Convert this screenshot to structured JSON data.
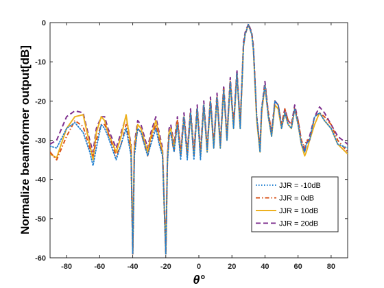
{
  "chart_data": {
    "type": "line",
    "xlabel": "θ°",
    "ylabel": "Normalize beamformer output[dB]",
    "xlim": [
      -90,
      90
    ],
    "ylim": [
      -60,
      0
    ],
    "xticks": [
      -80,
      -60,
      -40,
      -20,
      0,
      20,
      40,
      60,
      80
    ],
    "yticks": [
      0,
      -10,
      -20,
      -30,
      -40,
      -50,
      -60
    ],
    "grid": false,
    "legend_position": "bottom-right",
    "series": [
      {
        "name": "JJR = -10dB",
        "color": "#1f7fd0",
        "style": "dotted",
        "x": [
          -90,
          -86,
          -80,
          -75,
          -70,
          -66,
          -64,
          -62,
          -59,
          -57,
          -55,
          -50,
          -47,
          -44,
          -41,
          -40,
          -39,
          -37,
          -35,
          -33,
          -31,
          -29,
          -26,
          -24,
          -22,
          -20,
          -19,
          -18,
          -17,
          -15,
          -13,
          -11,
          -9,
          -7,
          -5,
          -3,
          -1,
          1,
          3,
          5,
          7,
          9,
          11,
          13,
          15,
          17,
          19,
          21,
          23,
          25,
          27,
          28,
          30,
          32,
          33,
          35,
          37,
          38,
          40,
          42,
          44,
          46,
          48,
          50,
          52,
          54,
          56,
          58,
          60,
          62,
          64,
          65,
          67,
          70,
          73,
          76,
          80,
          84,
          90
        ],
        "y": [
          -31.5,
          -32,
          -27,
          -25.5,
          -28,
          -33,
          -36.5,
          -32,
          -26,
          -27,
          -29,
          -35,
          -31,
          -27,
          -34,
          -59,
          -34,
          -27,
          -28,
          -31,
          -34,
          -31,
          -27,
          -31,
          -34,
          -59,
          -36,
          -29,
          -28,
          -33,
          -26,
          -35,
          -24,
          -35,
          -23,
          -35,
          -22,
          -35,
          -21,
          -33,
          -20,
          -32,
          -19,
          -32,
          -17,
          -30,
          -15,
          -27,
          -13,
          -27,
          -6,
          -3,
          -0.5,
          -3,
          -7,
          -24,
          -33,
          -22,
          -16,
          -24,
          -29,
          -20,
          -21,
          -27,
          -23,
          -26,
          -27,
          -22,
          -26,
          -31,
          -33,
          -31,
          -30,
          -24,
          -23,
          -25,
          -27,
          -31,
          -32
        ]
      },
      {
        "name": "JJR = 0dB",
        "color": "#d95319",
        "style": "dashdot",
        "x": [
          -90,
          -86,
          -80,
          -75,
          -70,
          -66,
          -64,
          -62,
          -59,
          -57,
          -55,
          -50,
          -47,
          -44,
          -41,
          -40,
          -39,
          -37,
          -35,
          -33,
          -31,
          -29,
          -26,
          -24,
          -22,
          -20,
          -19,
          -18,
          -17,
          -15,
          -13,
          -11,
          -9,
          -7,
          -5,
          -3,
          -1,
          1,
          3,
          5,
          7,
          9,
          11,
          13,
          15,
          17,
          19,
          21,
          23,
          25,
          27,
          28,
          30,
          32,
          33,
          35,
          37,
          38,
          40,
          42,
          44,
          46,
          48,
          50,
          52,
          54,
          56,
          58,
          60,
          62,
          64,
          65,
          67,
          70,
          73,
          76,
          80,
          84,
          90
        ],
        "y": [
          -33,
          -35,
          -29,
          -25,
          -26.5,
          -32,
          -34,
          -30,
          -26,
          -26,
          -28,
          -34,
          -31,
          -26,
          -33,
          -59,
          -33,
          -27,
          -28,
          -31,
          -34,
          -30,
          -26,
          -30,
          -34,
          -59,
          -35,
          -29,
          -28,
          -33,
          -25,
          -34,
          -24,
          -34,
          -23,
          -34,
          -22,
          -34,
          -21,
          -32,
          -20,
          -31,
          -19,
          -31,
          -17,
          -29,
          -15,
          -26,
          -13,
          -26,
          -6,
          -3,
          -0.5,
          -3,
          -7,
          -24,
          -32,
          -22,
          -16,
          -23,
          -28,
          -20,
          -21,
          -26,
          -22,
          -25,
          -26,
          -22,
          -25,
          -30,
          -32,
          -30,
          -30,
          -24,
          -23,
          -24,
          -26,
          -30,
          -33
        ]
      },
      {
        "name": "JJR = 10dB",
        "color": "#edb120",
        "style": "solid",
        "x": [
          -90,
          -86,
          -80,
          -75,
          -70,
          -66,
          -64,
          -62,
          -59,
          -57,
          -55,
          -50,
          -47,
          -44,
          -41,
          -40,
          -39,
          -37,
          -35,
          -33,
          -31,
          -29,
          -26,
          -24,
          -22,
          -20,
          -19,
          -18,
          -17,
          -15,
          -13,
          -11,
          -9,
          -7,
          -5,
          -3,
          -1,
          1,
          3,
          5,
          7,
          9,
          11,
          13,
          15,
          17,
          19,
          21,
          23,
          25,
          27,
          28,
          30,
          32,
          33,
          35,
          37,
          38,
          40,
          42,
          44,
          46,
          48,
          50,
          52,
          54,
          56,
          58,
          60,
          62,
          64,
          65,
          67,
          70,
          73,
          76,
          80,
          84,
          90
        ],
        "y": [
          -33.5,
          -34.5,
          -27,
          -24,
          -23.5,
          -31,
          -35,
          -28,
          -24,
          -25,
          -28,
          -33,
          -29,
          -23.5,
          -32,
          -59,
          -32,
          -26,
          -27,
          -30,
          -33,
          -29,
          -25,
          -29,
          -33,
          -59,
          -35,
          -28,
          -27,
          -32,
          -25,
          -34,
          -24,
          -34,
          -23,
          -34,
          -22,
          -34,
          -21,
          -33,
          -20,
          -32,
          -19,
          -32,
          -17,
          -30,
          -15,
          -27,
          -13,
          -27,
          -6,
          -3,
          -0.5,
          -3,
          -7,
          -25,
          -33,
          -23,
          -16,
          -24,
          -29,
          -21,
          -22,
          -27,
          -23,
          -26,
          -27,
          -22,
          -26,
          -31,
          -34,
          -33,
          -30,
          -26,
          -23,
          -25,
          -27,
          -31,
          -33.5
        ]
      },
      {
        "name": "JJR = 20dB",
        "color": "#7e2f8e",
        "style": "dashed",
        "x": [
          -90,
          -86,
          -80,
          -75,
          -70,
          -66,
          -64,
          -62,
          -59,
          -57,
          -55,
          -50,
          -47,
          -44,
          -41,
          -40,
          -39,
          -37,
          -35,
          -33,
          -31,
          -29,
          -26,
          -24,
          -22,
          -20,
          -19,
          -18,
          -17,
          -15,
          -13,
          -11,
          -9,
          -7,
          -5,
          -3,
          -1,
          1,
          3,
          5,
          7,
          9,
          11,
          13,
          15,
          17,
          19,
          21,
          23,
          25,
          27,
          28,
          30,
          32,
          33,
          35,
          37,
          38,
          40,
          42,
          44,
          46,
          48,
          50,
          52,
          54,
          56,
          58,
          60,
          62,
          64,
          65,
          67,
          70,
          73,
          76,
          80,
          84,
          90
        ],
        "y": [
          -31,
          -30,
          -24,
          -22.5,
          -23,
          -30,
          -33,
          -27,
          -24,
          -24,
          -27,
          -32,
          -28,
          -24,
          -31,
          -59,
          -31,
          -25,
          -26,
          -29,
          -32,
          -28,
          -24,
          -28,
          -32,
          -59,
          -34,
          -27,
          -26,
          -31,
          -24,
          -33,
          -23,
          -33,
          -22,
          -33,
          -21,
          -33,
          -20,
          -32,
          -19,
          -31,
          -18,
          -31,
          -16,
          -29,
          -14,
          -26,
          -12,
          -26,
          -5,
          -2.5,
          -0.3,
          -2.5,
          -6,
          -24,
          -32,
          -22,
          -15,
          -23,
          -28,
          -20,
          -21,
          -26,
          -22,
          -25,
          -26,
          -21,
          -25,
          -30,
          -33,
          -31,
          -29,
          -24,
          -21.5,
          -23,
          -26,
          -29,
          -31
        ]
      }
    ]
  }
}
